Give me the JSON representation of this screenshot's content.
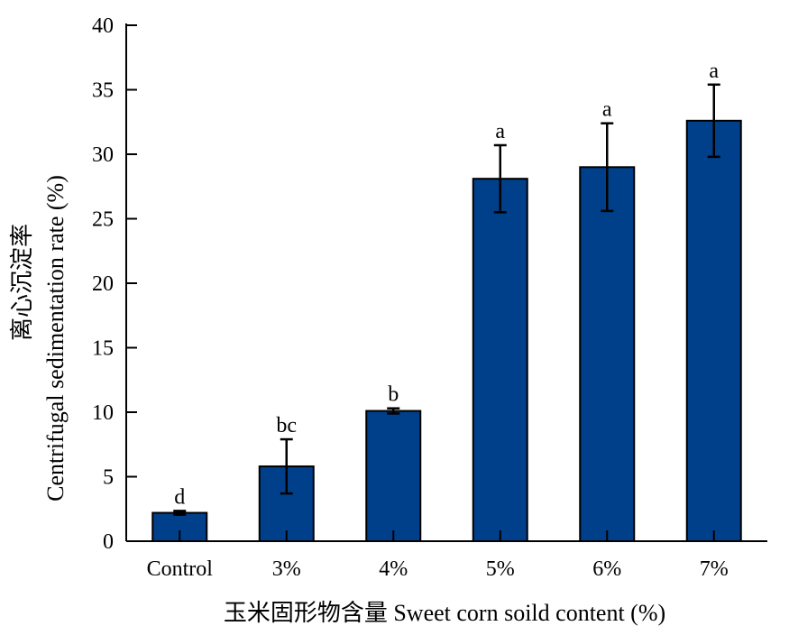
{
  "chart_data": {
    "type": "bar",
    "categories": [
      "Control",
      "3%",
      "4%",
      "5%",
      "6%",
      "7%"
    ],
    "values": [
      2.2,
      5.8,
      10.1,
      28.1,
      29.0,
      32.6
    ],
    "errors": [
      0.15,
      2.1,
      0.2,
      2.6,
      3.4,
      2.8
    ],
    "significance": [
      "d",
      "bc",
      "b",
      "a",
      "a",
      "a"
    ],
    "bar_color": "#003F8A",
    "xlabel": "玉米固形物含量 Sweet corn soild content (%)",
    "ylabel_cn": "离心沉淀率",
    "ylabel_en": "Centrifugal sedimentation rate (%)",
    "ylim": [
      0,
      40
    ],
    "yticks": [
      0,
      5,
      10,
      15,
      20,
      25,
      30,
      35,
      40
    ],
    "grid": false,
    "legend": "none"
  }
}
